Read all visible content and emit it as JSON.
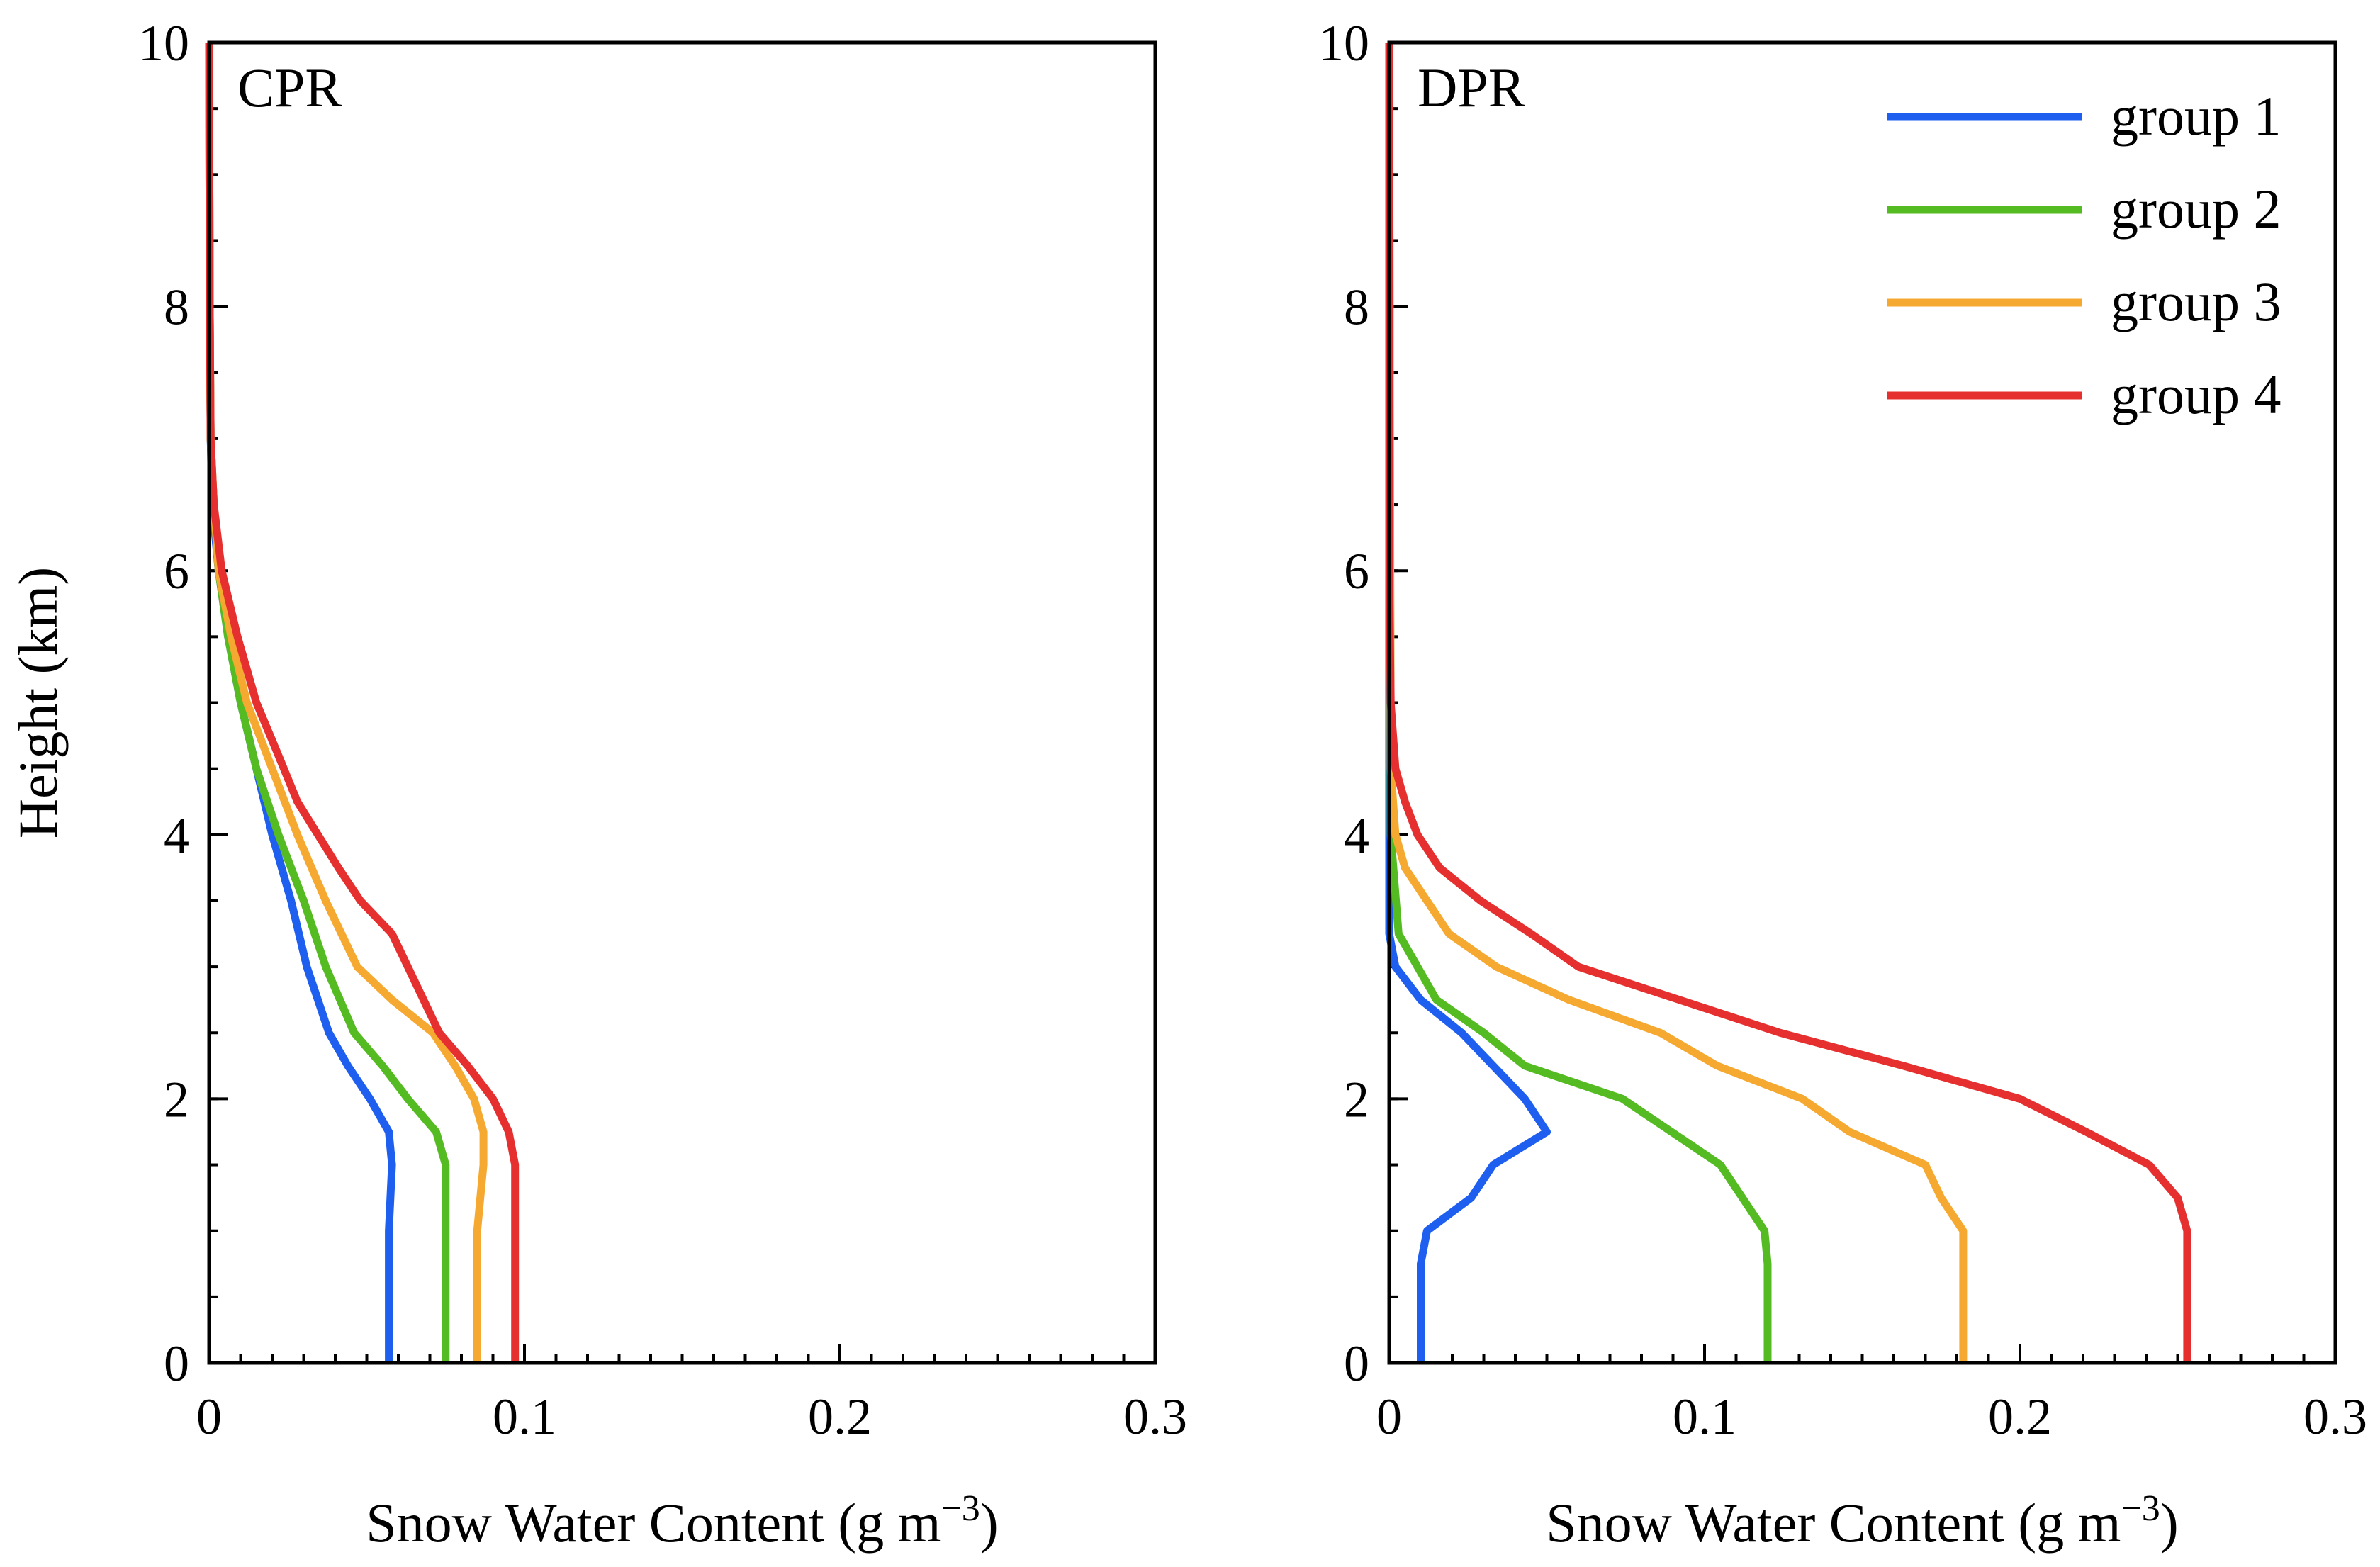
{
  "chart_data": [
    {
      "type": "line",
      "panel_label": "CPR",
      "xlabel": "Snow Water Content (g m",
      "xlabel_unit_exponent": "−3",
      "xlabel_close": ")",
      "ylabel": "Height (km)",
      "xlim": [
        0,
        0.3
      ],
      "ylim": [
        0,
        10
      ],
      "x_ticks": [
        0,
        0.1,
        0.2,
        0.3
      ],
      "x_tick_labels": [
        "0",
        "0.1",
        "0.2",
        "0.3"
      ],
      "y_ticks": [
        0,
        2,
        4,
        6,
        8,
        10
      ],
      "y_tick_labels": [
        "0",
        "2",
        "4",
        "6",
        "8",
        "10"
      ],
      "y_minor_step": 0.5,
      "x_minor_step": 0.01,
      "series": [
        {
          "name": "group 1",
          "color": "#1e5ff0",
          "points": [
            [
              0.057,
              0
            ],
            [
              0.057,
              0.5
            ],
            [
              0.057,
              1.0
            ],
            [
              0.058,
              1.5
            ],
            [
              0.057,
              1.75
            ],
            [
              0.051,
              2.0
            ],
            [
              0.044,
              2.25
            ],
            [
              0.038,
              2.5
            ],
            [
              0.031,
              3.0
            ],
            [
              0.026,
              3.5
            ],
            [
              0.02,
              4.0
            ],
            [
              0.015,
              4.5
            ],
            [
              0.01,
              5.0
            ],
            [
              0.006,
              5.5
            ],
            [
              0.003,
              6.0
            ],
            [
              0.001,
              6.5
            ],
            [
              0.0005,
              7.0
            ],
            [
              0.0002,
              8.0
            ],
            [
              0.0,
              10.0
            ]
          ]
        },
        {
          "name": "group 2",
          "color": "#55bb22",
          "points": [
            [
              0.075,
              0
            ],
            [
              0.075,
              0.5
            ],
            [
              0.075,
              1.0
            ],
            [
              0.075,
              1.5
            ],
            [
              0.072,
              1.75
            ],
            [
              0.063,
              2.0
            ],
            [
              0.055,
              2.25
            ],
            [
              0.046,
              2.5
            ],
            [
              0.037,
              3.0
            ],
            [
              0.03,
              3.5
            ],
            [
              0.022,
              4.0
            ],
            [
              0.015,
              4.5
            ],
            [
              0.01,
              5.0
            ],
            [
              0.006,
              5.5
            ],
            [
              0.003,
              6.0
            ],
            [
              0.0015,
              6.5
            ],
            [
              0.0005,
              7.0
            ],
            [
              0.0002,
              8.0
            ],
            [
              0.0,
              10.0
            ]
          ]
        },
        {
          "name": "group 3",
          "color": "#f5a930",
          "points": [
            [
              0.085,
              0
            ],
            [
              0.085,
              0.5
            ],
            [
              0.085,
              1.0
            ],
            [
              0.087,
              1.5
            ],
            [
              0.087,
              1.75
            ],
            [
              0.084,
              2.0
            ],
            [
              0.078,
              2.25
            ],
            [
              0.071,
              2.5
            ],
            [
              0.058,
              2.75
            ],
            [
              0.047,
              3.0
            ],
            [
              0.037,
              3.5
            ],
            [
              0.028,
              4.0
            ],
            [
              0.02,
              4.5
            ],
            [
              0.012,
              5.0
            ],
            [
              0.007,
              5.5
            ],
            [
              0.003,
              6.0
            ],
            [
              0.0015,
              6.5
            ],
            [
              0.0005,
              7.0
            ],
            [
              0.0002,
              8.0
            ],
            [
              0.0,
              10.0
            ]
          ]
        },
        {
          "name": "group 4",
          "color": "#e63030",
          "points": [
            [
              0.097,
              0
            ],
            [
              0.097,
              0.5
            ],
            [
              0.097,
              1.0
            ],
            [
              0.097,
              1.5
            ],
            [
              0.095,
              1.75
            ],
            [
              0.09,
              2.0
            ],
            [
              0.082,
              2.25
            ],
            [
              0.073,
              2.5
            ],
            [
              0.068,
              2.75
            ],
            [
              0.063,
              3.0
            ],
            [
              0.058,
              3.25
            ],
            [
              0.048,
              3.5
            ],
            [
              0.041,
              3.75
            ],
            [
              0.028,
              4.25
            ],
            [
              0.022,
              4.6
            ],
            [
              0.015,
              5.0
            ],
            [
              0.009,
              5.5
            ],
            [
              0.004,
              6.0
            ],
            [
              0.0015,
              6.5
            ],
            [
              0.0005,
              7.0
            ],
            [
              0.0002,
              8.0
            ],
            [
              0.0,
              10.0
            ]
          ]
        }
      ]
    },
    {
      "type": "line",
      "panel_label": "DPR",
      "xlabel": "Snow Water Content (g m",
      "xlabel_unit_exponent": "−3",
      "xlabel_close": ")",
      "ylabel": "",
      "xlim": [
        0,
        0.3
      ],
      "ylim": [
        0,
        10
      ],
      "x_ticks": [
        0,
        0.1,
        0.2,
        0.3
      ],
      "x_tick_labels": [
        "0",
        "0.1",
        "0.2",
        "0.3"
      ],
      "y_ticks": [
        0,
        2,
        4,
        6,
        8,
        10
      ],
      "y_tick_labels": [
        "0",
        "2",
        "4",
        "6",
        "8",
        "10"
      ],
      "y_minor_step": 0.5,
      "x_minor_step": 0.01,
      "legend": [
        "group 1",
        "group 2",
        "group 3",
        "group 4"
      ],
      "legend_position": "top-right",
      "series": [
        {
          "name": "group 1",
          "color": "#1e5ff0",
          "points": [
            [
              0.01,
              0
            ],
            [
              0.01,
              0.5
            ],
            [
              0.01,
              0.75
            ],
            [
              0.012,
              1.0
            ],
            [
              0.026,
              1.25
            ],
            [
              0.033,
              1.5
            ],
            [
              0.05,
              1.75
            ],
            [
              0.043,
              2.0
            ],
            [
              0.033,
              2.25
            ],
            [
              0.023,
              2.5
            ],
            [
              0.01,
              2.75
            ],
            [
              0.002,
              3.0
            ],
            [
              0.0,
              3.25
            ],
            [
              0.0,
              10.0
            ]
          ]
        },
        {
          "name": "group 2",
          "color": "#55bb22",
          "points": [
            [
              0.12,
              0
            ],
            [
              0.12,
              0.5
            ],
            [
              0.12,
              0.75
            ],
            [
              0.119,
              1.0
            ],
            [
              0.105,
              1.5
            ],
            [
              0.074,
              2.0
            ],
            [
              0.043,
              2.25
            ],
            [
              0.03,
              2.5
            ],
            [
              0.015,
              2.75
            ],
            [
              0.003,
              3.25
            ],
            [
              0.0005,
              4.0
            ],
            [
              0.0,
              10.0
            ]
          ]
        },
        {
          "name": "group 3",
          "color": "#f5a930",
          "points": [
            [
              0.182,
              0
            ],
            [
              0.182,
              0.5
            ],
            [
              0.182,
              0.75
            ],
            [
              0.182,
              1.0
            ],
            [
              0.175,
              1.25
            ],
            [
              0.17,
              1.5
            ],
            [
              0.146,
              1.75
            ],
            [
              0.131,
              2.0
            ],
            [
              0.104,
              2.25
            ],
            [
              0.086,
              2.5
            ],
            [
              0.057,
              2.75
            ],
            [
              0.034,
              3.0
            ],
            [
              0.019,
              3.25
            ],
            [
              0.012,
              3.5
            ],
            [
              0.005,
              3.75
            ],
            [
              0.002,
              4.0
            ],
            [
              0.0005,
              4.5
            ],
            [
              0.0,
              10.0
            ]
          ]
        },
        {
          "name": "group 4",
          "color": "#e63030",
          "points": [
            [
              0.253,
              0
            ],
            [
              0.253,
              0.5
            ],
            [
              0.253,
              0.75
            ],
            [
              0.253,
              1.0
            ],
            [
              0.25,
              1.25
            ],
            [
              0.241,
              1.5
            ],
            [
              0.221,
              1.75
            ],
            [
              0.2,
              2.0
            ],
            [
              0.163,
              2.25
            ],
            [
              0.124,
              2.5
            ],
            [
              0.092,
              2.75
            ],
            [
              0.06,
              3.0
            ],
            [
              0.045,
              3.25
            ],
            [
              0.029,
              3.5
            ],
            [
              0.016,
              3.75
            ],
            [
              0.009,
              4.0
            ],
            [
              0.005,
              4.25
            ],
            [
              0.002,
              4.5
            ],
            [
              0.0005,
              5.0
            ],
            [
              0.0,
              6.0
            ],
            [
              0.0,
              10.0
            ]
          ]
        }
      ]
    }
  ]
}
